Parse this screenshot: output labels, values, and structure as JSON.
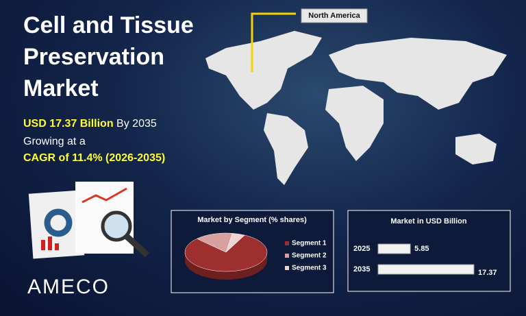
{
  "title": "Cell and Tissue Preservation Market",
  "highlight": {
    "value": "USD 17.37 Billion",
    "by": "By 2035",
    "growing": "Growing at a",
    "cagr": "CAGR of 11.4% (2026-2035)"
  },
  "map_label": "North America",
  "brand": "AMECO",
  "chart_data": [
    {
      "type": "pie",
      "title": "Market by Segment  (% shares)",
      "categories": [
        "Segment 1",
        "Segment 2",
        "Segment 3"
      ],
      "values": [
        80,
        15,
        5
      ],
      "colors": [
        "#9e2f2f",
        "#d9a0a0",
        "#efd4d4"
      ]
    },
    {
      "type": "bar",
      "title": "Market in USD Billion",
      "categories": [
        "2025",
        "2035"
      ],
      "values": [
        5.85,
        17.37
      ],
      "color": "#f2f2f2"
    }
  ]
}
